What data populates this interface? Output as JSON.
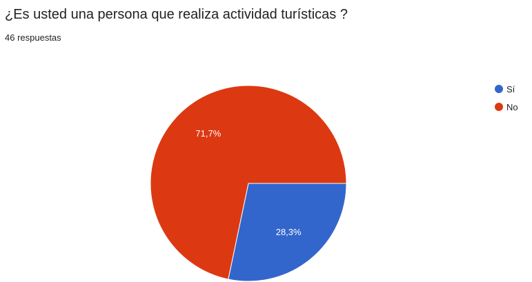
{
  "question": {
    "title": "¿Es usted una persona que realiza actividad turísticas ?",
    "response_count": "46 respuestas"
  },
  "colors": {
    "series_si": "#3366cc",
    "series_no": "#dc3912",
    "slice_border": "#ffffff",
    "slice_label": "#ffffff"
  },
  "chart_data": {
    "type": "pie",
    "title": "¿Es usted una persona que realiza actividad turísticas ?",
    "slices": [
      {
        "label": "Sí",
        "value": 28.3,
        "display": "28,3%",
        "color": "#3366cc"
      },
      {
        "label": "No",
        "value": 71.7,
        "display": "71,7%",
        "color": "#dc3912"
      }
    ],
    "start_angle_deg": 90,
    "direction": "clockwise",
    "legend_position": "right"
  }
}
